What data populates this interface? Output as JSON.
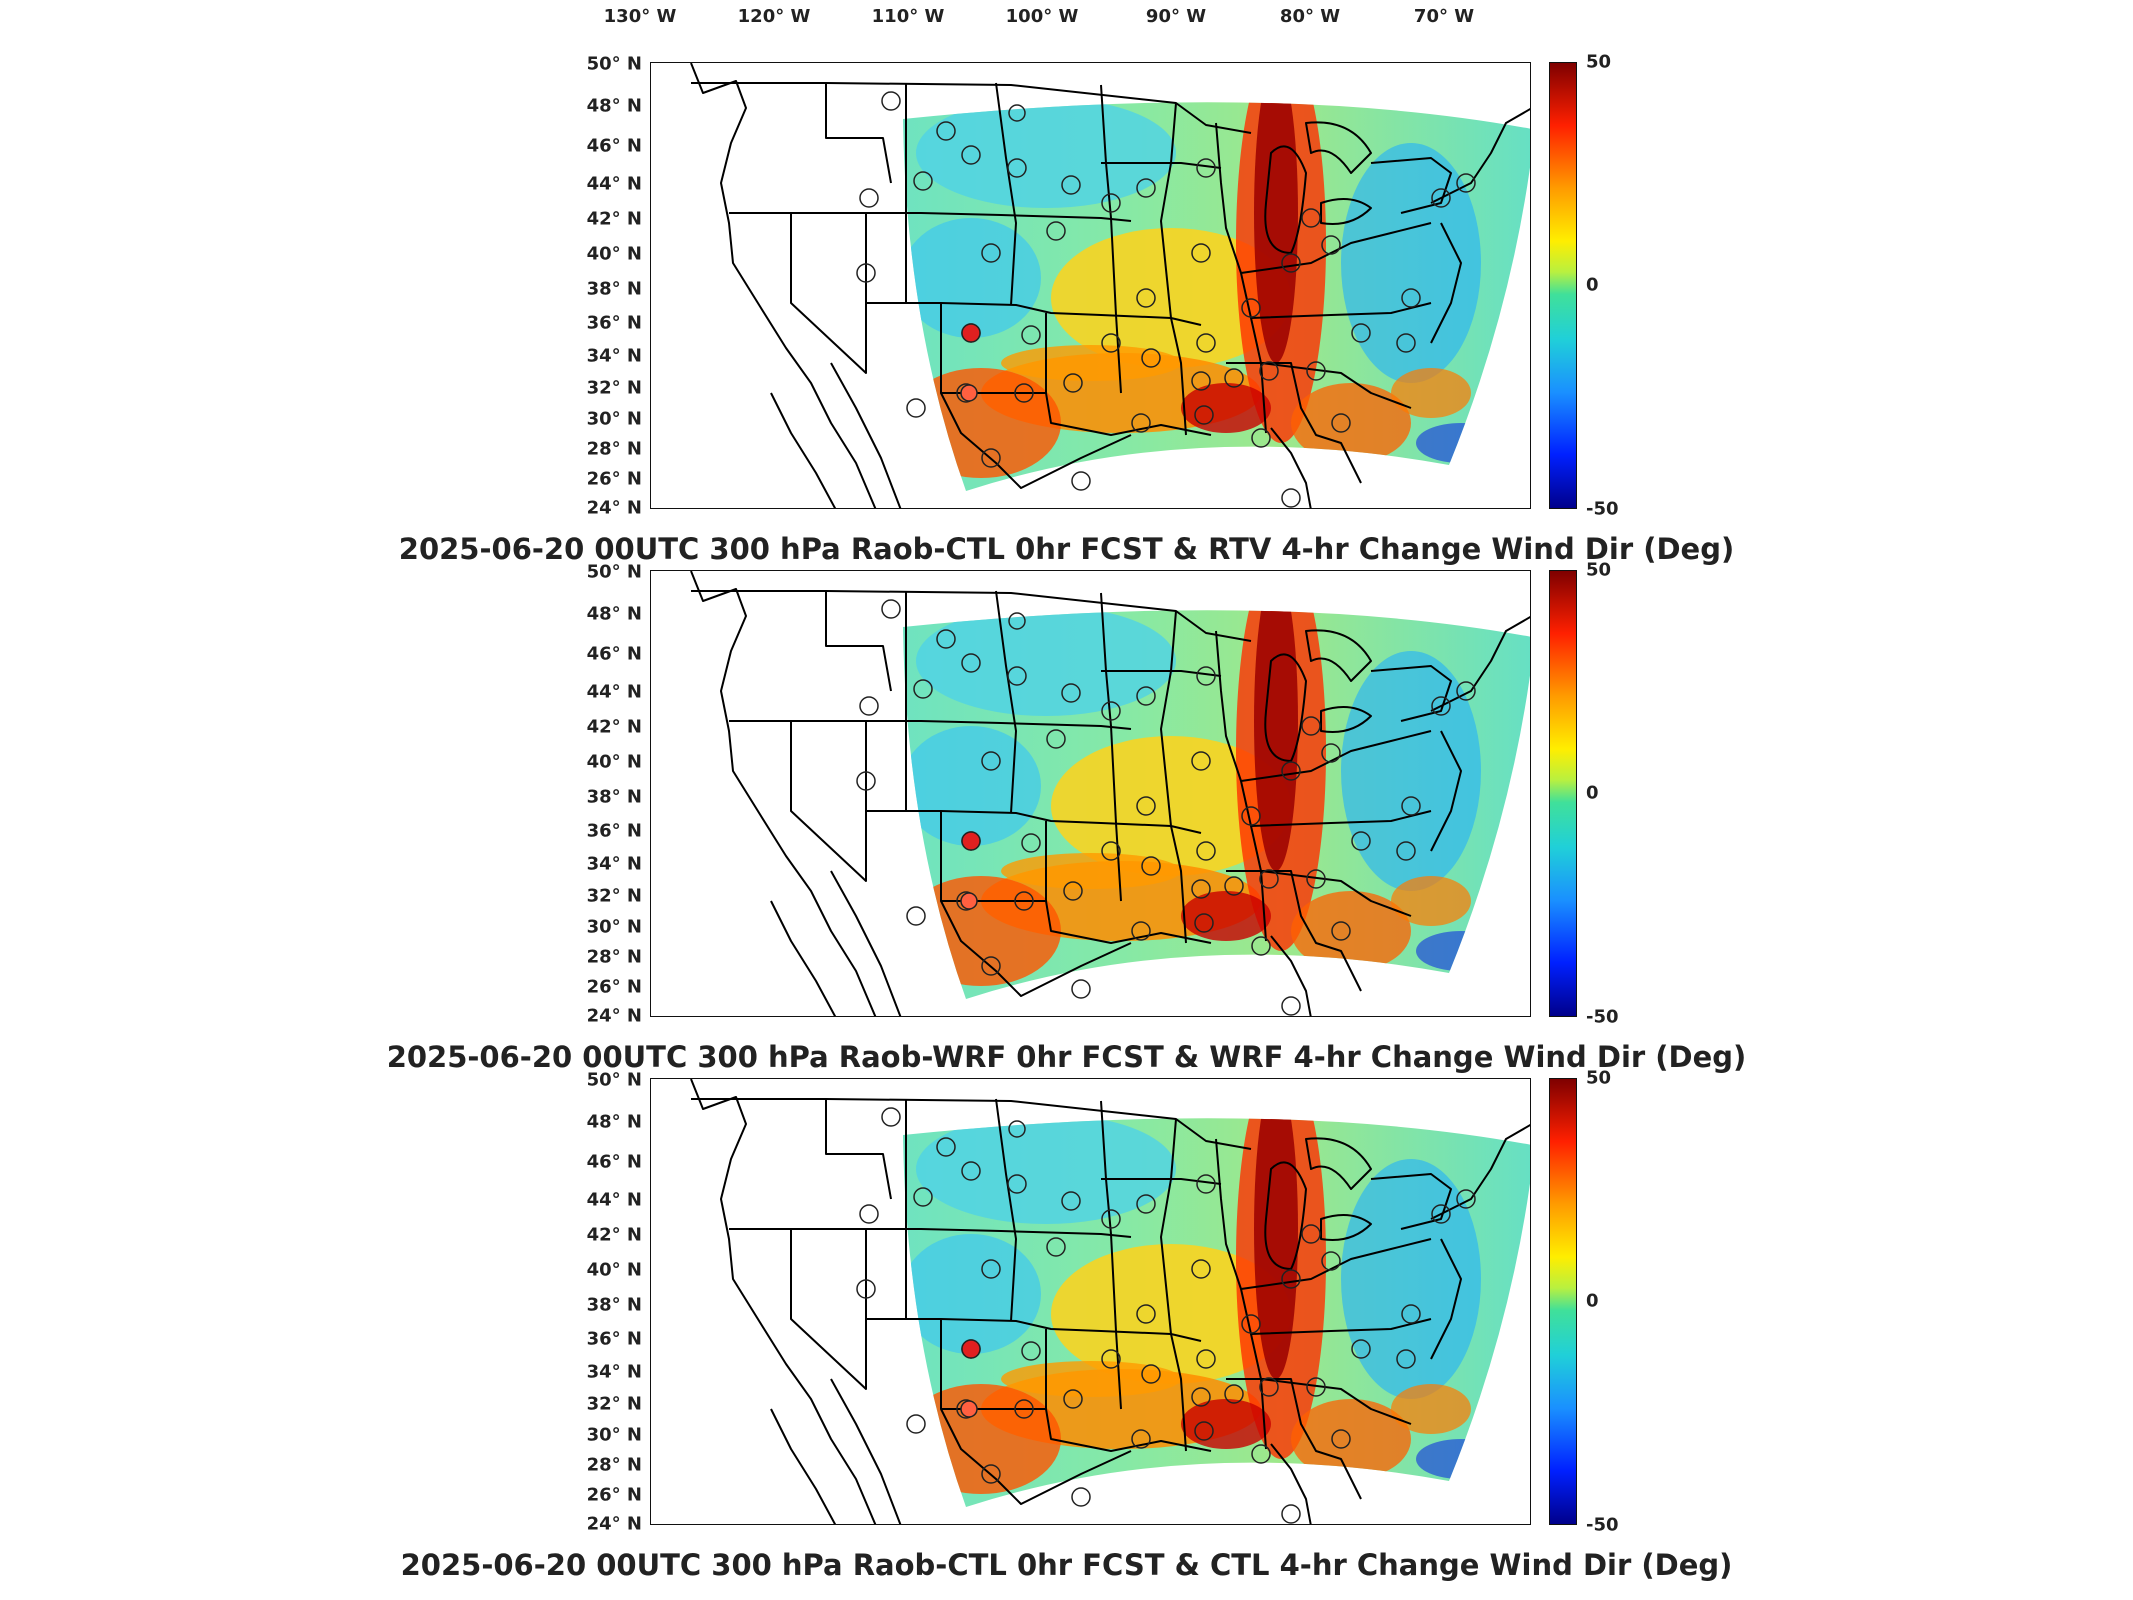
{
  "longitude_labels": [
    "130° W",
    "120° W",
    "110° W",
    "100° W",
    "90° W",
    "80° W",
    "70° W"
  ],
  "latitude_labels": [
    "50° N",
    "48° N",
    "46° N",
    "44° N",
    "42° N",
    "40° N",
    "38° N",
    "36° N",
    "34° N",
    "32° N",
    "30° N",
    "28° N",
    "26° N",
    "24° N"
  ],
  "colorbar": {
    "max": "50",
    "mid": "0",
    "min": "-50"
  },
  "panels": [
    {
      "title": "2025-06-20 00UTC 300 hPa Raob-CTL 0hr FCST & RTV 4-hr Change Wind Dir (Deg)"
    },
    {
      "title": "2025-06-20 00UTC 300 hPa Raob-WRF 0hr FCST & WRF 4-hr Change Wind Dir (Deg)"
    },
    {
      "title": "2025-06-20 00UTC 300 hPa Raob-CTL 0hr FCST & CTL 4-hr Change Wind Dir (Deg)"
    }
  ],
  "colors": {
    "high": "#7f0000",
    "zero": "#40e09a",
    "low": "#00008b"
  }
}
